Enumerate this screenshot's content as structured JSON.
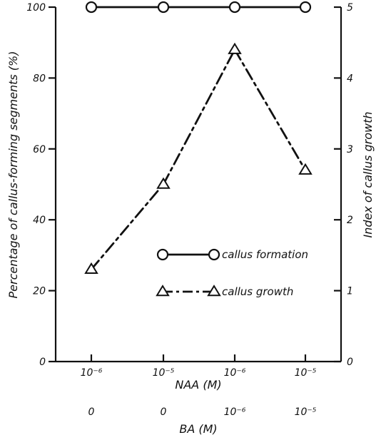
{
  "colors": {
    "ink": "#111111",
    "background": "#ffffff"
  },
  "chart_data": {
    "type": "line",
    "title": "",
    "categories_naa": [
      "10⁻⁶",
      "10⁻⁵",
      "10⁻⁶",
      "10⁻⁵"
    ],
    "categories_ba": [
      "0",
      "0",
      "10⁻⁶",
      "10⁻⁵"
    ],
    "xlabel_naa": "NAA (M)",
    "xlabel_ba": "BA (M)",
    "ylabel_left": "Percentage of callus-forming segments (%)",
    "ylabel_right": "Index of callus growth",
    "ylim_left": [
      0,
      100
    ],
    "ylim_right": [
      0,
      5
    ],
    "yticks_left": [
      "0",
      "20",
      "40",
      "60",
      "80",
      "100"
    ],
    "yticks_right": [
      "0",
      "1",
      "2",
      "3",
      "4",
      "5"
    ],
    "grid": false,
    "legend_position": "center-right, inside plot",
    "series": [
      {
        "name": "callus formation",
        "axis": "left",
        "marker": "circle",
        "line_style": "solid",
        "values": [
          100,
          100,
          100,
          100
        ]
      },
      {
        "name": "callus growth",
        "axis": "right",
        "marker": "triangle",
        "line_style": "dash-dot",
        "values": [
          1.3,
          2.5,
          4.4,
          2.7
        ]
      }
    ]
  }
}
